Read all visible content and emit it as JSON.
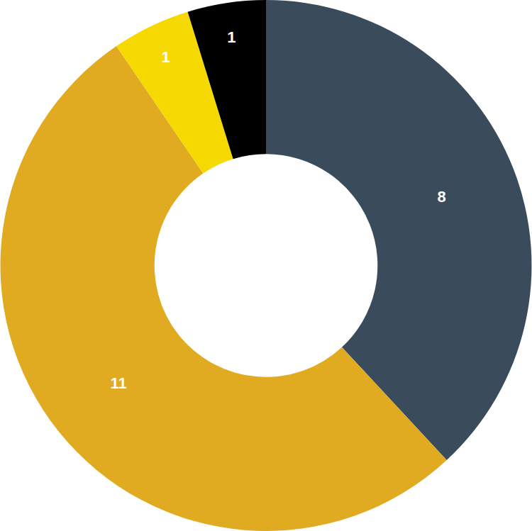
{
  "chart_data": {
    "type": "pie",
    "values": [
      8,
      11,
      1,
      1
    ],
    "colors": [
      "#3a4c5c",
      "#e0ab20",
      "#f6d900",
      "#000000"
    ],
    "data_labels": true
  }
}
